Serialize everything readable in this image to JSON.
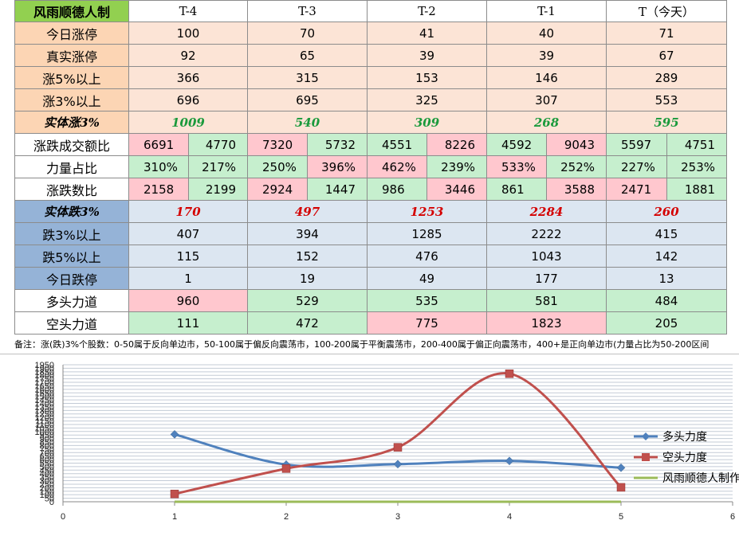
{
  "table": {
    "corner": "风雨顺德人制",
    "columns": [
      "T-4",
      "T-3",
      "T-2",
      "T-1",
      "T（今天）"
    ],
    "rows": [
      {
        "label": "今日涨停",
        "kind": "single",
        "theme": "up",
        "values": [
          "100",
          "70",
          "41",
          "40",
          "71"
        ]
      },
      {
        "label": "真实涨停",
        "kind": "single",
        "theme": "up",
        "values": [
          "92",
          "65",
          "39",
          "39",
          "67"
        ]
      },
      {
        "label": "涨5%以上",
        "kind": "single",
        "theme": "up",
        "values": [
          "366",
          "315",
          "153",
          "146",
          "289"
        ]
      },
      {
        "label": "涨3%以上",
        "kind": "single",
        "theme": "up",
        "values": [
          "696",
          "695",
          "325",
          "307",
          "553"
        ]
      },
      {
        "label": "实体涨3%",
        "kind": "bold",
        "theme": "up",
        "values": [
          "1009",
          "540",
          "309",
          "268",
          "595"
        ]
      },
      {
        "label": "涨跌成交额比",
        "kind": "pair",
        "values": [
          [
            "6691",
            "4770"
          ],
          [
            "7320",
            "5732"
          ],
          [
            "4551",
            "8226"
          ],
          [
            "4592",
            "9043"
          ],
          [
            "5597",
            "4751"
          ]
        ]
      },
      {
        "label": "力量占比",
        "kind": "pair",
        "values": [
          [
            "310%",
            "217%"
          ],
          [
            "250%",
            "396%"
          ],
          [
            "462%",
            "239%"
          ],
          [
            "533%",
            "252%"
          ],
          [
            "227%",
            "253%"
          ]
        ]
      },
      {
        "label": "涨跌数比",
        "kind": "pair",
        "values": [
          [
            "2158",
            "2199"
          ],
          [
            "2924",
            "1447"
          ],
          [
            "986",
            "3446"
          ],
          [
            "861",
            "3588"
          ],
          [
            "2471",
            "1881"
          ]
        ]
      },
      {
        "label": "实体跌3%",
        "kind": "bold",
        "theme": "down",
        "values": [
          "170",
          "497",
          "1253",
          "2284",
          "260"
        ]
      },
      {
        "label": "跌3%以上",
        "kind": "single",
        "theme": "down",
        "values": [
          "407",
          "394",
          "1285",
          "2222",
          "415"
        ]
      },
      {
        "label": "跌5%以上",
        "kind": "single",
        "theme": "down",
        "values": [
          "115",
          "152",
          "476",
          "1043",
          "142"
        ]
      },
      {
        "label": "今日跌停",
        "kind": "single",
        "theme": "down",
        "values": [
          "1",
          "19",
          "49",
          "177",
          "13"
        ]
      },
      {
        "label": "多头力道",
        "kind": "single",
        "theme": "force",
        "values": [
          "960",
          "529",
          "535",
          "581",
          "484"
        ]
      },
      {
        "label": "空头力道",
        "kind": "single",
        "theme": "force",
        "values": [
          "111",
          "472",
          "775",
          "1823",
          "205"
        ]
      }
    ],
    "pair_colors": [
      [
        "red",
        "green"
      ],
      [
        "red",
        "green"
      ],
      [
        "green",
        "red"
      ],
      [
        "green",
        "red"
      ],
      [
        "green",
        "green"
      ],
      [
        "green",
        "green"
      ],
      [
        "green",
        "red"
      ],
      [
        "red",
        "green"
      ],
      [
        "red",
        "green"
      ],
      [
        "green",
        "green"
      ],
      [
        "red",
        "green"
      ],
      [
        "red",
        "green"
      ],
      [
        "green",
        "red"
      ],
      [
        "green",
        "red"
      ],
      [
        "red",
        "green"
      ]
    ],
    "force_colors": [
      [
        "red",
        "green",
        "green",
        "green",
        "green"
      ],
      [
        "green",
        "green",
        "red",
        "red",
        "green"
      ]
    ],
    "note": "备注：涨(跌)3%个股数：0-50属于反向单边市，50-100属于偏反向震荡市，100-200属于平衡震荡市，200-400属于偏正向震荡市，400+是正向单边市(力量占比为50-200区间"
  },
  "colors": {
    "corner_bg": "#92d050",
    "up_bg": "#fce4d6",
    "up_label_bg": "#fcd5b4",
    "up_bold_text": "#1a9a3c",
    "down_bg": "#dce6f1",
    "down_label_bg": "#95b3d7",
    "down_bold_text": "#d40000",
    "cell_green": "#c6efce",
    "cell_red": "#ffc7ce",
    "series_long": "#4f81bd",
    "series_short": "#c0504d",
    "series_third": "#9bbb59"
  },
  "chart_data": {
    "type": "line",
    "x": [
      1,
      2,
      3,
      4,
      5
    ],
    "xlim": [
      0,
      6
    ],
    "xticks": [
      0,
      1,
      2,
      3,
      4,
      5,
      6
    ],
    "ylim": [
      0,
      1950
    ],
    "ytick_step": 50,
    "smooth": true,
    "grid": true,
    "legend_position": "right",
    "series": [
      {
        "name": "多头力度",
        "values": [
          960,
          529,
          535,
          581,
          484
        ],
        "marker": "diamond",
        "color": "#4f81bd"
      },
      {
        "name": "空头力度",
        "values": [
          111,
          472,
          775,
          1823,
          205
        ],
        "marker": "square",
        "color": "#c0504d"
      },
      {
        "name": "风雨顺德人制作",
        "values": [
          0,
          0,
          0,
          0,
          0
        ],
        "marker": "none",
        "color": "#9bbb59"
      }
    ]
  }
}
